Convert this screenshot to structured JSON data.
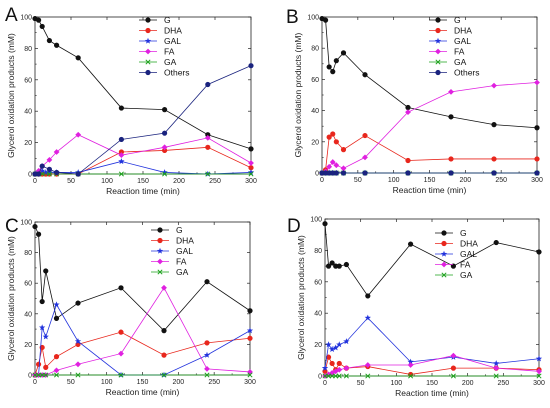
{
  "figure": {
    "panels": [
      {
        "letter": "A"
      },
      {
        "letter": "B"
      },
      {
        "letter": "C"
      },
      {
        "letter": "D"
      }
    ]
  },
  "chart_data": [
    {
      "panel": "A",
      "type": "line",
      "xlabel": "Reaction time (min)",
      "ylabel": "Glycerol oxidation products (mM)",
      "xlim": [
        0,
        300
      ],
      "ylim": [
        0,
        100
      ],
      "xticks": [
        0,
        50,
        100,
        150,
        200,
        250,
        300
      ],
      "yticks": [
        0,
        20,
        40,
        60,
        80,
        100
      ],
      "legend_position": "top-center",
      "grid": false,
      "series": [
        {
          "name": "G",
          "color": "#111111",
          "marker": "circle",
          "x": [
            0,
            5,
            10,
            20,
            30,
            60,
            120,
            180,
            240,
            300
          ],
          "y": [
            99,
            98,
            94,
            85,
            82,
            74,
            42,
            41,
            25,
            16
          ]
        },
        {
          "name": "DHA",
          "color": "#e8261c",
          "marker": "circle",
          "x": [
            0,
            5,
            10,
            15,
            20,
            30,
            60,
            120,
            180,
            240,
            300
          ],
          "y": [
            0,
            0,
            0,
            0,
            0,
            0,
            0,
            14,
            15,
            17,
            4
          ]
        },
        {
          "name": "GAL",
          "color": "#2233dd",
          "marker": "star",
          "x": [
            0,
            5,
            10,
            15,
            20,
            30,
            60,
            120,
            180,
            240,
            300
          ],
          "y": [
            0,
            1,
            2,
            1,
            1,
            1,
            1,
            8,
            1,
            0,
            1
          ]
        },
        {
          "name": "FA",
          "color": "#e020e0",
          "marker": "diamond",
          "x": [
            0,
            5,
            10,
            20,
            30,
            60,
            120,
            180,
            240,
            300
          ],
          "y": [
            0,
            2,
            5,
            9,
            14,
            25,
            12,
            17,
            23,
            7
          ]
        },
        {
          "name": "GA",
          "color": "#1aa01a",
          "marker": "x",
          "x": [
            0,
            5,
            10,
            20,
            30,
            60,
            120,
            180,
            240,
            300
          ],
          "y": [
            0,
            0,
            0,
            0,
            0,
            0,
            0,
            0,
            0,
            0
          ]
        },
        {
          "name": "Others",
          "color": "#1a237e",
          "marker": "circle",
          "x": [
            0,
            5,
            10,
            20,
            30,
            60,
            120,
            180,
            240,
            300
          ],
          "y": [
            0,
            0,
            5,
            3,
            1,
            0,
            22,
            26,
            57,
            69
          ]
        }
      ]
    },
    {
      "panel": "B",
      "type": "line",
      "xlabel": "Reaction time (min)",
      "ylabel": "Glycerol oxidation products (mM)",
      "xlim": [
        0,
        300
      ],
      "ylim": [
        0,
        100
      ],
      "xticks": [
        0,
        50,
        100,
        150,
        200,
        250,
        300
      ],
      "yticks": [
        0,
        20,
        40,
        60,
        80,
        100
      ],
      "legend_position": "top-right",
      "grid": false,
      "series": [
        {
          "name": "G",
          "color": "#111111",
          "marker": "circle",
          "x": [
            0,
            5,
            10,
            15,
            20,
            30,
            60,
            120,
            180,
            240,
            300
          ],
          "y": [
            99,
            98,
            68,
            65,
            72,
            77,
            63,
            42,
            36,
            31,
            29
          ]
        },
        {
          "name": "DHA",
          "color": "#e8261c",
          "marker": "circle",
          "x": [
            0,
            5,
            10,
            15,
            20,
            30,
            60,
            120,
            180,
            240,
            300
          ],
          "y": [
            0,
            2,
            23,
            25,
            20,
            15,
            24,
            8,
            9,
            9,
            9
          ]
        },
        {
          "name": "GAL",
          "color": "#2233dd",
          "marker": "star",
          "x": [
            0,
            5,
            10,
            15,
            20,
            30,
            60,
            120,
            180,
            240,
            300
          ],
          "y": [
            0,
            0,
            0,
            0,
            0,
            0,
            0,
            0,
            0,
            0,
            0
          ]
        },
        {
          "name": "FA",
          "color": "#e020e0",
          "marker": "diamond",
          "x": [
            0,
            5,
            10,
            15,
            20,
            30,
            60,
            120,
            180,
            240,
            300
          ],
          "y": [
            0,
            1,
            4,
            7,
            5,
            3,
            10,
            39,
            52,
            56,
            58
          ]
        },
        {
          "name": "GA",
          "color": "#1aa01a",
          "marker": "x",
          "x": [
            0,
            5,
            10,
            15,
            20,
            30,
            60,
            120,
            180,
            240,
            300
          ],
          "y": [
            0,
            0,
            0,
            0,
            0,
            0,
            0,
            0,
            0,
            0,
            0
          ]
        },
        {
          "name": "Others",
          "color": "#1a237e",
          "marker": "circle",
          "x": [
            0,
            5,
            10,
            15,
            20,
            30,
            60,
            120,
            180,
            240,
            300
          ],
          "y": [
            0,
            0,
            0,
            0,
            0,
            0,
            0,
            0,
            0,
            0,
            0
          ]
        }
      ]
    },
    {
      "panel": "C",
      "type": "line",
      "xlabel": "Reaction time (min)",
      "ylabel": "Glycerol oxidation products (mM)",
      "xlim": [
        0,
        300
      ],
      "ylim": [
        0,
        100
      ],
      "xticks": [
        0,
        50,
        100,
        150,
        200,
        250,
        300
      ],
      "yticks": [
        0,
        20,
        40,
        60,
        80,
        100
      ],
      "legend_position": "top-right",
      "grid": false,
      "series": [
        {
          "name": "G",
          "color": "#111111",
          "marker": "circle",
          "x": [
            0,
            5,
            10,
            15,
            30,
            60,
            120,
            180,
            240,
            300
          ],
          "y": [
            97,
            92,
            48,
            68,
            37,
            47,
            57,
            29,
            61,
            42
          ]
        },
        {
          "name": "DHA",
          "color": "#e8261c",
          "marker": "circle",
          "x": [
            0,
            5,
            10,
            15,
            30,
            60,
            120,
            180,
            240,
            300
          ],
          "y": [
            0,
            7,
            18,
            5,
            12,
            20,
            28,
            13,
            21,
            24
          ]
        },
        {
          "name": "GAL",
          "color": "#2233dd",
          "marker": "star",
          "x": [
            0,
            5,
            10,
            15,
            30,
            60,
            120,
            180,
            240,
            300
          ],
          "y": [
            0,
            0,
            31,
            25,
            46,
            22,
            0,
            0,
            13,
            29
          ]
        },
        {
          "name": "FA",
          "color": "#e020e0",
          "marker": "diamond",
          "x": [
            0,
            5,
            10,
            15,
            30,
            60,
            120,
            180,
            240,
            300
          ],
          "y": [
            0,
            0,
            0,
            0,
            3,
            7,
            14,
            57,
            4,
            2
          ]
        },
        {
          "name": "GA",
          "color": "#1aa01a",
          "marker": "x",
          "x": [
            0,
            5,
            10,
            15,
            30,
            60,
            120,
            180,
            240,
            300
          ],
          "y": [
            0,
            0,
            0,
            0,
            0,
            0,
            0,
            0,
            0,
            0
          ]
        }
      ]
    },
    {
      "panel": "D",
      "type": "line",
      "xlabel": "Reaction time (min)",
      "ylabel": "Glycerol oxidation products (mM)",
      "xlim": [
        0,
        300
      ],
      "ylim": [
        0,
        100
      ],
      "xticks": [
        0,
        50,
        100,
        150,
        200,
        250,
        300
      ],
      "yticks": [
        0,
        20,
        40,
        60,
        80,
        100
      ],
      "legend_position": "top-right",
      "grid": false,
      "series": [
        {
          "name": "G",
          "color": "#111111",
          "marker": "circle",
          "x": [
            0,
            5,
            10,
            15,
            20,
            30,
            60,
            120,
            180,
            240,
            300
          ],
          "y": [
            97,
            70,
            72,
            70,
            70,
            71,
            51,
            84,
            70,
            85,
            79
          ]
        },
        {
          "name": "DHA",
          "color": "#e8261c",
          "marker": "circle",
          "x": [
            0,
            5,
            10,
            15,
            20,
            30,
            60,
            120,
            180,
            240,
            300
          ],
          "y": [
            3,
            12,
            8,
            4,
            8,
            5,
            6,
            1,
            5,
            5,
            4
          ]
        },
        {
          "name": "GAL",
          "color": "#2233dd",
          "marker": "star",
          "x": [
            0,
            5,
            10,
            15,
            20,
            30,
            60,
            120,
            180,
            240,
            300
          ],
          "y": [
            5,
            20,
            17,
            18,
            20,
            22,
            37,
            9,
            12,
            8,
            11
          ]
        },
        {
          "name": "FA",
          "color": "#e020e0",
          "marker": "diamond",
          "x": [
            0,
            5,
            10,
            15,
            20,
            30,
            60,
            120,
            180,
            240,
            300
          ],
          "y": [
            0,
            1,
            2,
            3,
            4,
            5,
            7,
            7,
            13,
            5,
            3
          ]
        },
        {
          "name": "GA",
          "color": "#1aa01a",
          "marker": "x",
          "x": [
            0,
            5,
            10,
            15,
            20,
            30,
            60,
            120,
            180,
            240,
            300
          ],
          "y": [
            0,
            0,
            0,
            0,
            0,
            0,
            0,
            0,
            0,
            0,
            0
          ]
        }
      ]
    }
  ]
}
